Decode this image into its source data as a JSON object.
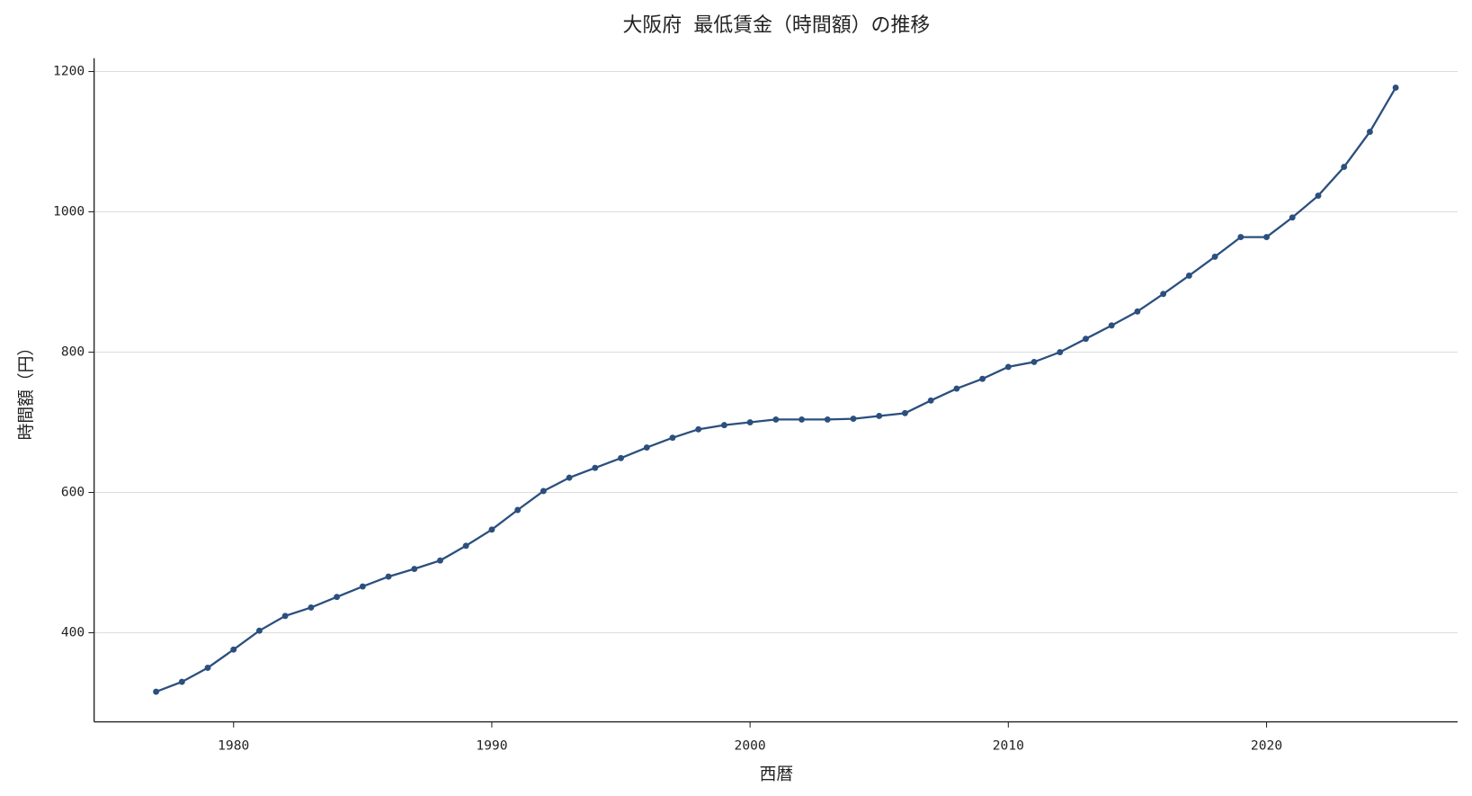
{
  "chart_data": {
    "type": "line",
    "title": "大阪府 最低賃金（時間額）の推移",
    "x_label": "西暦",
    "y_label": "時間額（円）",
    "x": [
      1977,
      1978,
      1979,
      1980,
      1981,
      1982,
      1983,
      1984,
      1985,
      1986,
      1987,
      1988,
      1989,
      1990,
      1991,
      1992,
      1993,
      1994,
      1995,
      1996,
      1997,
      1998,
      1999,
      2000,
      2001,
      2002,
      2003,
      2004,
      2005,
      2006,
      2007,
      2008,
      2009,
      2010,
      2011,
      2012,
      2013,
      2014,
      2015,
      2016,
      2017,
      2018,
      2019,
      2020,
      2021,
      2022,
      2023,
      2024,
      2025
    ],
    "series": [
      {
        "name": "大阪府",
        "color": "#2b4f7e",
        "values": [
          316,
          330,
          350,
          376,
          403,
          424,
          436,
          451,
          466,
          480,
          491,
          503,
          524,
          547,
          575,
          602,
          621,
          635,
          649,
          664,
          678,
          690,
          696,
          700,
          704,
          704,
          704,
          705,
          709,
          713,
          731,
          748,
          762,
          779,
          786,
          800,
          819,
          838,
          858,
          883,
          909,
          936,
          964,
          964,
          992,
          1023,
          1064,
          1114,
          1177
        ]
      }
    ],
    "xlim": [
      1974.6,
      2027.4
    ],
    "ylim": [
      273,
      1219
    ],
    "xticks": [
      1980,
      1990,
      2000,
      2010,
      2020
    ],
    "yticks": [
      400,
      600,
      800,
      1000,
      1200
    ],
    "grid": true
  }
}
